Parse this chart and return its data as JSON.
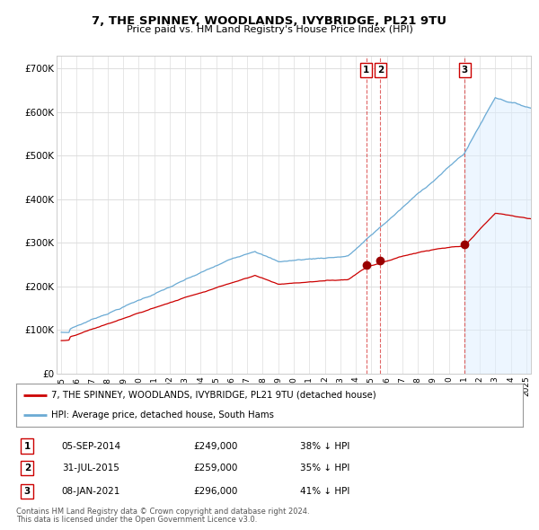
{
  "title": "7, THE SPINNEY, WOODLANDS, IVYBRIDGE, PL21 9TU",
  "subtitle": "Price paid vs. HM Land Registry's House Price Index (HPI)",
  "ylabel_ticks": [
    "£0",
    "£100K",
    "£200K",
    "£300K",
    "£400K",
    "£500K",
    "£600K",
    "£700K"
  ],
  "ytick_values": [
    0,
    100000,
    200000,
    300000,
    400000,
    500000,
    600000,
    700000
  ],
  "ylim": [
    0,
    730000
  ],
  "xlim_start": 1994.7,
  "xlim_end": 2025.3,
  "hpi_color": "#6aaad4",
  "hpi_fill_color": "#ddeeff",
  "price_color": "#cc0000",
  "marker1_date": 2014.68,
  "marker2_date": 2015.58,
  "marker3_date": 2021.03,
  "shade_start": 2021.03,
  "legend_property": "7, THE SPINNEY, WOODLANDS, IVYBRIDGE, PL21 9TU (detached house)",
  "legend_hpi": "HPI: Average price, detached house, South Hams",
  "table_rows": [
    {
      "num": "1",
      "date": "05-SEP-2014",
      "price": "£249,000",
      "pct": "38% ↓ HPI"
    },
    {
      "num": "2",
      "date": "31-JUL-2015",
      "price": "£259,000",
      "pct": "35% ↓ HPI"
    },
    {
      "num": "3",
      "date": "08-JAN-2021",
      "price": "£296,000",
      "pct": "41% ↓ HPI"
    }
  ],
  "footnote1": "Contains HM Land Registry data © Crown copyright and database right 2024.",
  "footnote2": "This data is licensed under the Open Government Licence v3.0.",
  "background_color": "#ffffff",
  "grid_color": "#dddddd",
  "marker_dot_color": "#990000",
  "marker_dot_size": 6
}
